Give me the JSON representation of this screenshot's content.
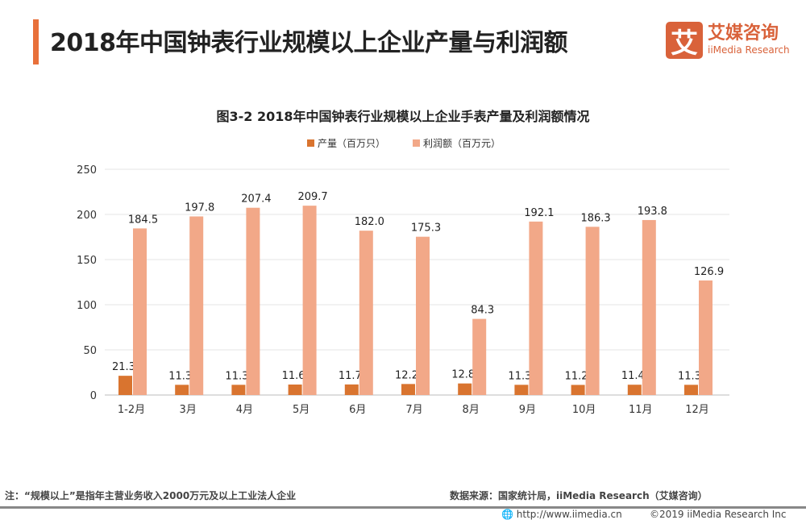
{
  "header": {
    "title": "2018年中国钟表行业规模以上企业产量与利润额"
  },
  "logo": {
    "mark": "艾",
    "cn": "艾媒咨询",
    "en": "iiMedia Research"
  },
  "chart_data": {
    "type": "bar",
    "title": "图3-2 2018年中国钟表行业规模以上企业手表产量及利润额情况",
    "categories": [
      "1-2月",
      "3月",
      "4月",
      "5月",
      "6月",
      "7月",
      "8月",
      "9月",
      "10月",
      "11月",
      "12月"
    ],
    "series": [
      {
        "name": "产量（百万只）",
        "color": "#d9742f",
        "values": [
          21.3,
          11.3,
          11.3,
          11.6,
          11.7,
          12.2,
          12.8,
          11.3,
          11.2,
          11.4,
          11.3
        ]
      },
      {
        "name": "利润额（百万元）",
        "color": "#f2a888",
        "values": [
          184.5,
          197.8,
          207.4,
          209.7,
          182.0,
          175.3,
          84.3,
          192.1,
          186.3,
          193.8,
          126.9
        ]
      }
    ],
    "ylim": [
      0,
      250
    ],
    "yticks": [
      "0",
      "50",
      "100",
      "150",
      "200",
      "250"
    ],
    "grid": true,
    "legend": "top",
    "xlabel": "",
    "ylabel": ""
  },
  "footer": {
    "note": "注：“规模以上”是指年主营业务收入2000万元及以上工业法人企业",
    "source": "数据来源：国家统计局，iiMedia Research（艾媒咨询）",
    "url": "http://www.iimedia.cn",
    "copyright": "©2019  iiMedia Research  Inc"
  }
}
